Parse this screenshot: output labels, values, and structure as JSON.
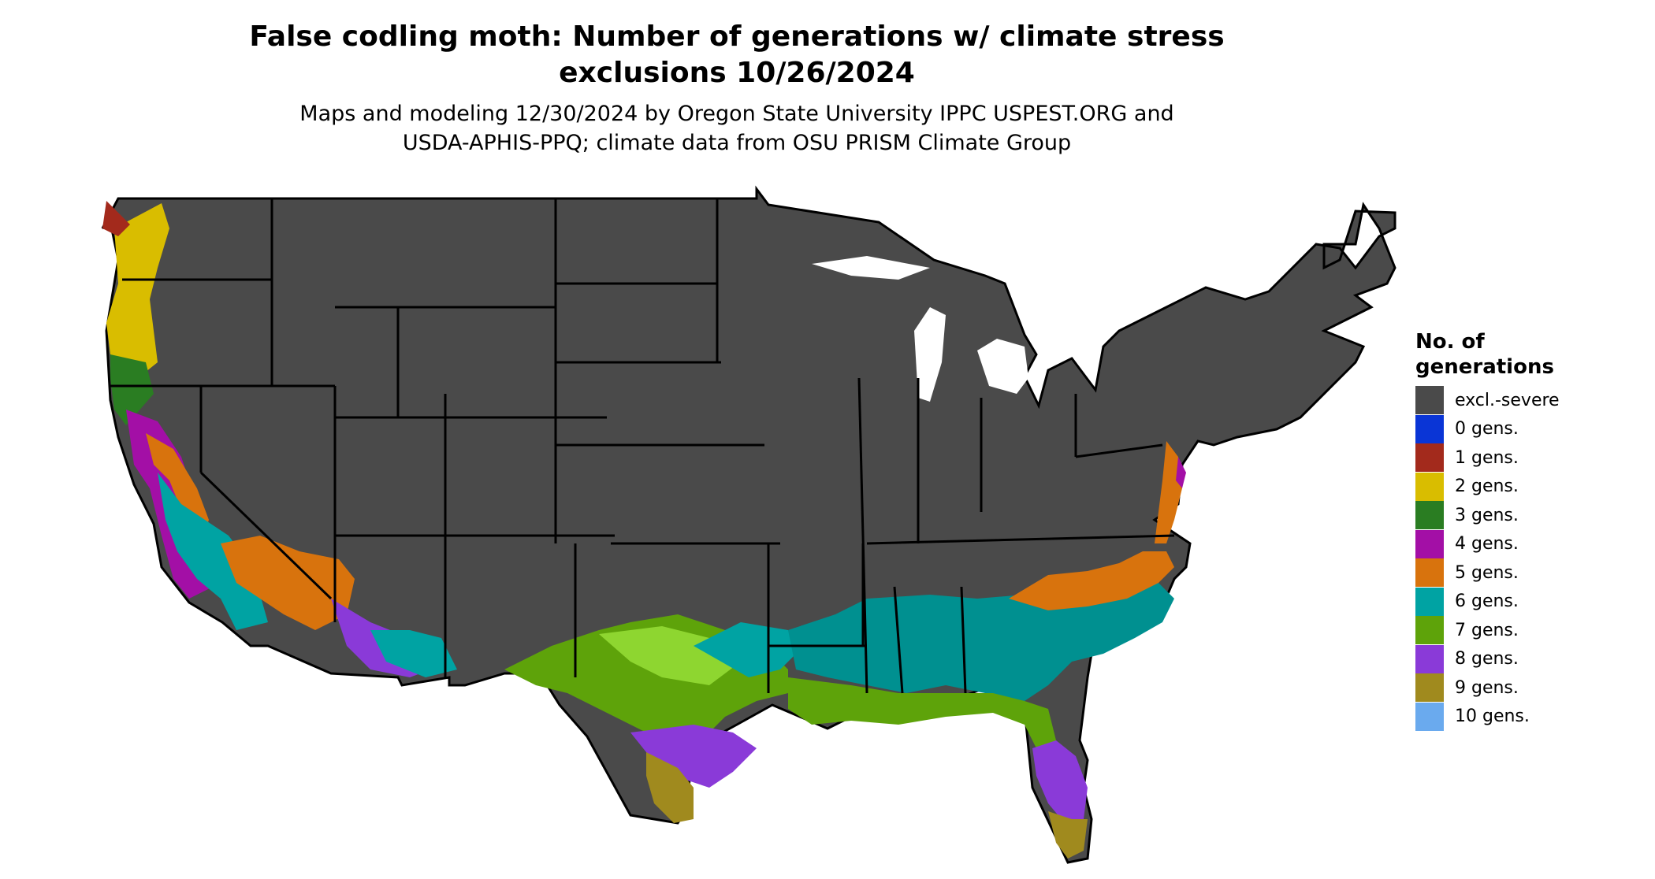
{
  "map": {
    "title_line1": "False codling moth: Number of generations w/ climate stress",
    "title_line2": "exclusions 10/26/2024",
    "subtitle_line1": "Maps and modeling 12/30/2024 by Oregon State University IPPC USPEST.ORG and",
    "subtitle_line2": "USDA-APHIS-PPQ; climate data from OSU PRISM Climate Group",
    "region": "Contiguous United States",
    "base_color": "#4a4a4a",
    "border_color": "#000000"
  },
  "legend": {
    "title_line1": "No. of",
    "title_line2": "generations",
    "items": [
      {
        "label": "excl.-severe",
        "color": "#4a4a4a"
      },
      {
        "label": "0 gens.",
        "color": "#0a35d6"
      },
      {
        "label": "1 gens.",
        "color": "#a32a1c"
      },
      {
        "label": "2 gens.",
        "color": "#d9bd00"
      },
      {
        "label": "3 gens.",
        "color": "#2a7d22"
      },
      {
        "label": "4 gens.",
        "color": "#a30fa6"
      },
      {
        "label": "5 gens.",
        "color": "#d8730d"
      },
      {
        "label": "6 gens.",
        "color": "#00a3a3"
      },
      {
        "label": "7 gens.",
        "color": "#5ea30a"
      },
      {
        "label": "8 gens.",
        "color": "#8a3ad8"
      },
      {
        "label": "9 gens.",
        "color": "#a08a1e"
      },
      {
        "label": "10 gens.",
        "color": "#6aaaee"
      }
    ]
  }
}
